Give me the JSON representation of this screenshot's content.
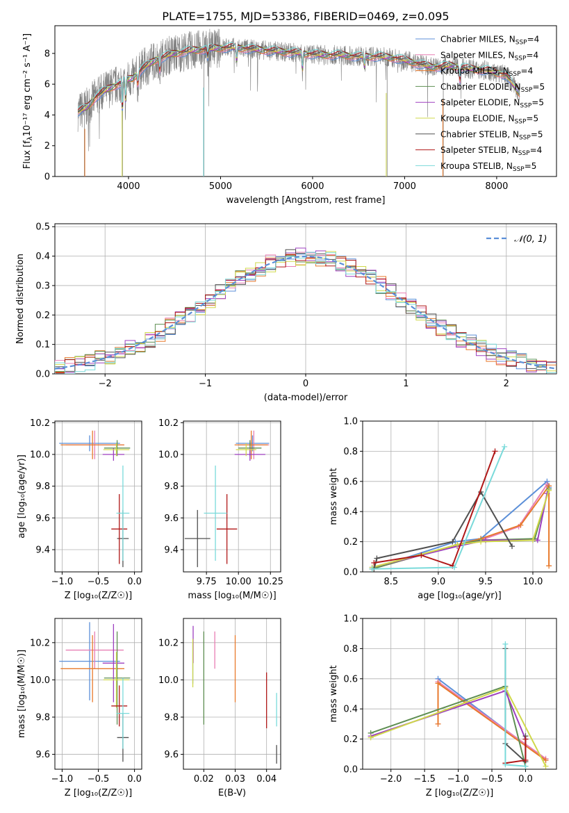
{
  "title": "PLATE=1755, MJD=53386, FIBERID=0469, z=0.095",
  "series_styles": [
    {
      "name": "Chabrier MILES",
      "color": "#5b8fd8",
      "nssp": "4"
    },
    {
      "name": "Salpeter MILES",
      "color": "#e87fb4",
      "nssp": "4"
    },
    {
      "name": "Kroupa MILES",
      "color": "#e87a2c",
      "nssp": "4"
    },
    {
      "name": "Chabrier ELODIE",
      "color": "#5e8e52",
      "nssp": "5"
    },
    {
      "name": "Salpeter ELODIE",
      "color": "#9d3fbf",
      "nssp": "5"
    },
    {
      "name": "Kroupa ELODIE",
      "color": "#cfd84a",
      "nssp": "5"
    },
    {
      "name": "Chabrier STELIB",
      "color": "#505050",
      "nssp": "5"
    },
    {
      "name": "Salpeter STELIB",
      "color": "#b01818",
      "nssp": "4"
    },
    {
      "name": "Kroupa STELIB",
      "color": "#79dada",
      "nssp": "5"
    }
  ],
  "chart_data": [
    {
      "type": "line",
      "id": "spectrum",
      "xlabel": "wavelength [Angstrom, rest frame]",
      "ylabel_main": "Flux [f",
      "ylabel_units": "10⁻¹⁷ erg cm⁻² s⁻¹ A⁻¹]",
      "xlim": [
        3200,
        8650
      ],
      "ylim": [
        0,
        9.8
      ],
      "xticks": [
        4000,
        5000,
        6000,
        7000,
        8000
      ],
      "yticks": [
        0,
        2,
        4,
        6,
        8
      ],
      "legend_position": "upper right",
      "data_line_color": "#808080",
      "continuum": {
        "x": [
          3450,
          3550,
          3650,
          3750,
          3850,
          3950,
          4050,
          4150,
          4300,
          4500,
          4700,
          4900,
          5100,
          5300,
          5500,
          5700,
          5900,
          6100,
          6300,
          6500,
          6700,
          6900,
          7100,
          7300,
          7500,
          7700,
          7900,
          8100,
          8250
        ],
        "y": [
          4.2,
          4.5,
          5.2,
          5.6,
          5.9,
          6.2,
          6.4,
          7.0,
          7.6,
          8.0,
          8.2,
          8.3,
          8.4,
          8.3,
          8.2,
          8.1,
          8.0,
          7.9,
          7.9,
          7.8,
          7.8,
          7.7,
          7.4,
          7.1,
          7.2,
          7.0,
          6.9,
          6.6,
          5.4
        ]
      }
    },
    {
      "type": "histogram",
      "id": "residuals",
      "xlabel": "(data-model)/error",
      "ylabel": "Normed distribution",
      "xlim": [
        -2.5,
        2.5
      ],
      "ylim": [
        0,
        0.51
      ],
      "xticks": [
        -2,
        -1,
        0,
        1,
        2
      ],
      "yticks": [
        0.0,
        0.1,
        0.2,
        0.3,
        0.4,
        0.5
      ],
      "bin_width": 0.1,
      "reference_curve": {
        "name": "𝒩(0, 1)",
        "mean": 0,
        "sigma": 1,
        "color": "#5b8fd8",
        "style": "dashed"
      },
      "legend_position": "upper right"
    },
    {
      "type": "errorbar",
      "id": "age-vs-Z",
      "xlabel": "Z [log₁₀(Z/Z☉)]",
      "ylabel": "age  [log₁₀(age/yr)]",
      "xlim": [
        -1.1,
        0.1
      ],
      "ylim": [
        9.26,
        10.21
      ],
      "xticks": [
        -1.0,
        -0.5,
        0.0
      ],
      "yticks": [
        9.4,
        9.6,
        9.8,
        10.0,
        10.2
      ],
      "points": [
        {
          "x": -0.62,
          "xerr": 0.42,
          "y": 10.07,
          "yerr": 0.05
        },
        {
          "x": -0.55,
          "xerr": 0.4,
          "y": 10.06,
          "yerr": 0.09
        },
        {
          "x": -0.58,
          "xerr": 0.44,
          "y": 10.06,
          "yerr": 0.09
        },
        {
          "x": -0.24,
          "xerr": 0.18,
          "y": 10.04,
          "yerr": 0.05
        },
        {
          "x": -0.29,
          "xerr": 0.15,
          "y": 10.0,
          "yerr": 0.04
        },
        {
          "x": -0.25,
          "xerr": 0.18,
          "y": 10.03,
          "yerr": 0.04
        },
        {
          "x": -0.16,
          "xerr": 0.08,
          "y": 9.47,
          "yerr": 0.18
        },
        {
          "x": -0.21,
          "xerr": 0.11,
          "y": 9.53,
          "yerr": 0.22
        },
        {
          "x": -0.16,
          "xerr": 0.09,
          "y": 9.63,
          "yerr": 0.3
        }
      ]
    },
    {
      "type": "errorbar",
      "id": "age-vs-mass",
      "xlabel": "mass [log₁₀(M/M☉)]",
      "ylabel": "",
      "xlim": [
        9.57,
        10.33
      ],
      "ylim": [
        9.26,
        10.21
      ],
      "xticks": [
        9.75,
        10.0,
        10.25
      ],
      "tick_labels": [
        "9.75",
        "10.00",
        "10.25"
      ],
      "yticks": [
        9.4,
        9.6,
        9.8,
        10.0,
        10.2
      ],
      "points": [
        {
          "x": 10.11,
          "xerr": 0.13,
          "y": 10.07,
          "yerr": 0.05
        },
        {
          "x": 10.12,
          "xerr": 0.12,
          "y": 10.06,
          "yerr": 0.09
        },
        {
          "x": 10.1,
          "xerr": 0.13,
          "y": 10.06,
          "yerr": 0.09
        },
        {
          "x": 10.09,
          "xerr": 0.09,
          "y": 10.04,
          "yerr": 0.05
        },
        {
          "x": 10.09,
          "xerr": 0.12,
          "y": 10.0,
          "yerr": 0.04
        },
        {
          "x": 10.06,
          "xerr": 0.08,
          "y": 10.03,
          "yerr": 0.04
        },
        {
          "x": 9.68,
          "xerr": 0.1,
          "y": 9.47,
          "yerr": 0.18
        },
        {
          "x": 9.91,
          "xerr": 0.08,
          "y": 9.53,
          "yerr": 0.22
        },
        {
          "x": 9.82,
          "xerr": 0.09,
          "y": 9.63,
          "yerr": 0.3
        }
      ]
    },
    {
      "type": "line",
      "id": "weight-vs-age",
      "xlabel": "age  [log₁₀(age/yr)]",
      "ylabel": "mass weight",
      "xlim": [
        8.2,
        10.25
      ],
      "ylim": [
        0,
        1.0
      ],
      "xticks": [
        8.5,
        9.0,
        9.5,
        10.0
      ],
      "yticks": [
        0.0,
        0.2,
        0.4,
        0.6,
        0.8,
        1.0
      ],
      "grid": true,
      "series": [
        {
          "x": [
            8.3,
            9.18,
            9.45,
            10.15,
            10.17
          ],
          "y": [
            0.02,
            0.2,
            0.22,
            0.6,
            0.56
          ]
        },
        {
          "x": [
            8.3,
            9.2,
            9.45,
            9.85,
            10.15
          ],
          "y": [
            0.02,
            0.18,
            0.21,
            0.3,
            0.58
          ]
        },
        {
          "x": [
            8.3,
            9.2,
            9.45,
            9.87,
            10.17,
            10.17
          ],
          "y": [
            0.02,
            0.18,
            0.22,
            0.31,
            0.57,
            0.04
          ]
        },
        {
          "x": [
            8.3,
            9.2,
            9.45,
            10.02,
            10.17
          ],
          "y": [
            0.02,
            0.18,
            0.21,
            0.22,
            0.55
          ]
        },
        {
          "x": [
            8.3,
            9.2,
            9.5,
            10.05,
            10.15
          ],
          "y": [
            0.03,
            0.17,
            0.21,
            0.21,
            0.52
          ]
        },
        {
          "x": [
            8.3,
            9.2,
            9.45,
            10.0,
            10.17
          ],
          "y": [
            0.03,
            0.18,
            0.2,
            0.21,
            0.54
          ]
        },
        {
          "x": [
            8.32,
            8.35,
            9.15,
            9.45,
            9.78
          ],
          "y": [
            0.02,
            0.09,
            0.2,
            0.53,
            0.17
          ]
        },
        {
          "x": [
            8.32,
            8.82,
            9.15,
            9.6
          ],
          "y": [
            0.06,
            0.11,
            0.04,
            0.8
          ]
        },
        {
          "x": [
            8.3,
            9.17,
            9.7
          ],
          "y": [
            0.02,
            0.03,
            0.83
          ]
        }
      ]
    },
    {
      "type": "errorbar",
      "id": "mass-vs-Z",
      "xlabel": "Z [log₁₀(Z/Z☉)]",
      "ylabel": "mass [log₁₀(M/M☉)]",
      "xlim": [
        -1.1,
        0.1
      ],
      "ylim": [
        9.52,
        10.33
      ],
      "xticks": [
        -1.0,
        -0.5,
        0.0
      ],
      "yticks": [
        9.6,
        9.8,
        10.0,
        10.2
      ],
      "points": [
        {
          "x": -0.62,
          "xerr": 0.42,
          "y": 10.1,
          "yerr": 0.21
        },
        {
          "x": -0.55,
          "xerr": 0.4,
          "y": 10.16,
          "yerr": 0.1
        },
        {
          "x": -0.58,
          "xerr": 0.44,
          "y": 10.06,
          "yerr": 0.18
        },
        {
          "x": -0.24,
          "xerr": 0.18,
          "y": 10.01,
          "yerr": 0.25
        },
        {
          "x": -0.29,
          "xerr": 0.15,
          "y": 10.09,
          "yerr": 0.21
        },
        {
          "x": -0.25,
          "xerr": 0.18,
          "y": 10.0,
          "yerr": 0.15
        },
        {
          "x": -0.16,
          "xerr": 0.08,
          "y": 9.69,
          "yerr": 0.13
        },
        {
          "x": -0.21,
          "xerr": 0.11,
          "y": 9.86,
          "yerr": 0.11
        },
        {
          "x": -0.16,
          "xerr": 0.09,
          "y": 9.82,
          "yerr": 0.19
        }
      ]
    },
    {
      "type": "errorbar",
      "id": "mass-vs-EBV",
      "xlabel": "E(B-V)",
      "ylabel": "",
      "xlim": [
        0.0135,
        0.0445
      ],
      "ylim": [
        9.52,
        10.33
      ],
      "xticks": [
        0.02,
        0.03,
        0.04
      ],
      "tick_labels": [
        "0.02",
        "0.03",
        "0.04"
      ],
      "yticks": [
        9.6,
        9.8,
        10.0,
        10.2
      ],
      "points": [
        {
          "x": 0.0165,
          "y": 10.09,
          "yerr": 0.11
        },
        {
          "x": 0.0235,
          "y": 10.16,
          "yerr": 0.1
        },
        {
          "x": 0.03,
          "y": 10.06,
          "yerr": 0.18
        },
        {
          "x": 0.02,
          "y": 10.01,
          "yerr": 0.25
        },
        {
          "x": 0.0166,
          "y": 10.19,
          "yerr": 0.1
        },
        {
          "x": 0.0165,
          "y": 10.09,
          "yerr": 0.13
        },
        {
          "x": 0.0432,
          "y": 9.6,
          "yerr": 0.05
        },
        {
          "x": 0.04,
          "y": 9.89,
          "yerr": 0.15
        },
        {
          "x": 0.0432,
          "y": 9.84,
          "yerr": 0.09
        }
      ]
    },
    {
      "type": "line",
      "id": "weight-vs-Z",
      "xlabel": "Z [log₁₀(Z/Z☉)]",
      "ylabel": "mass weight",
      "xlim": [
        -2.42,
        0.46
      ],
      "ylim": [
        0,
        1.0
      ],
      "xticks": [
        -2.0,
        -1.5,
        -1.0,
        -0.5,
        0.0
      ],
      "tick_labels": [
        "−2.0",
        "−1.5",
        "−1.0",
        "−0.5",
        "0.0"
      ],
      "yticks": [
        0.0,
        0.2,
        0.4,
        0.6,
        0.8,
        1.0
      ],
      "grid": true,
      "series": [
        {
          "x": [
            -1.3,
            0.3
          ],
          "y": [
            0.6,
            0.06
          ]
        },
        {
          "x": [
            -1.3,
            -1.3,
            0.3
          ],
          "y": [
            0.3,
            0.58,
            0.07
          ]
        },
        {
          "x": [
            -1.3,
            -1.3,
            0.3
          ],
          "y": [
            0.3,
            0.57,
            0.06
          ]
        },
        {
          "x": [
            -2.3,
            -0.3,
            0.0
          ],
          "y": [
            0.24,
            0.55,
            0.02
          ]
        },
        {
          "x": [
            -2.3,
            -0.3,
            0.0
          ],
          "y": [
            0.22,
            0.52,
            0.2
          ]
        },
        {
          "x": [
            -2.3,
            -0.3,
            0.3
          ],
          "y": [
            0.21,
            0.54,
            0.02
          ]
        },
        {
          "x": [
            -0.3,
            -0.3,
            0.0,
            0.0
          ],
          "y": [
            0.8,
            0.17,
            0.05,
            0.22
          ]
        },
        {
          "x": [
            -0.3,
            0.0,
            0.0
          ],
          "y": [
            0.04,
            0.06,
            0.2
          ]
        },
        {
          "x": [
            -0.3,
            -0.3,
            0.0
          ],
          "y": [
            0.83,
            0.03,
            0.02
          ]
        }
      ]
    }
  ]
}
